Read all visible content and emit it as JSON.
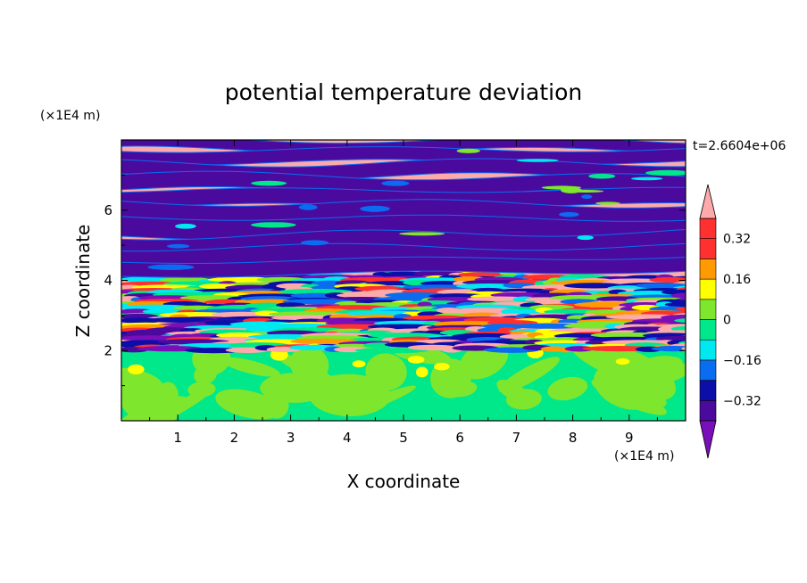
{
  "chart_data": {
    "type": "heatmap",
    "title": "potential temperature deviation",
    "xlabel": "X coordinate",
    "ylabel": "Z coordinate",
    "x_units": "(×1E4 m)",
    "y_units": "(×1E4 m)",
    "time_label": "t=2.6604e+06",
    "xlim": [
      0,
      10
    ],
    "ylim": [
      0,
      8
    ],
    "x_ticks": [
      1,
      2,
      3,
      4,
      5,
      6,
      7,
      8,
      9
    ],
    "y_ticks": [
      2,
      4,
      6
    ],
    "colorbar": {
      "levels": [
        -0.4,
        -0.32,
        -0.24,
        -0.16,
        -0.08,
        0,
        0.08,
        0.16,
        0.24,
        0.32,
        0.4
      ],
      "tick_values": [
        0.32,
        0.16,
        0,
        -0.16,
        -0.32
      ],
      "tick_labels": [
        "0.32",
        "0.16",
        "0",
        "−0.16",
        "−0.32"
      ],
      "colors": [
        "#7a0eb8",
        "#4b0a9e",
        "#0b0fa8",
        "#0a6cf0",
        "#00e8f0",
        "#00e88a",
        "#7ee62c",
        "#ffff00",
        "#ff9a00",
        "#ff3030",
        "#ffaaaa"
      ],
      "extend": "both"
    },
    "layers": [
      {
        "z_range": [
          0,
          2
        ],
        "description_value": 0.05
      },
      {
        "z_range": [
          2,
          4.3
        ],
        "description_value": "mixed"
      },
      {
        "z_range": [
          4.3,
          8
        ],
        "description_value": "alternating ±0.4 bands"
      }
    ]
  }
}
